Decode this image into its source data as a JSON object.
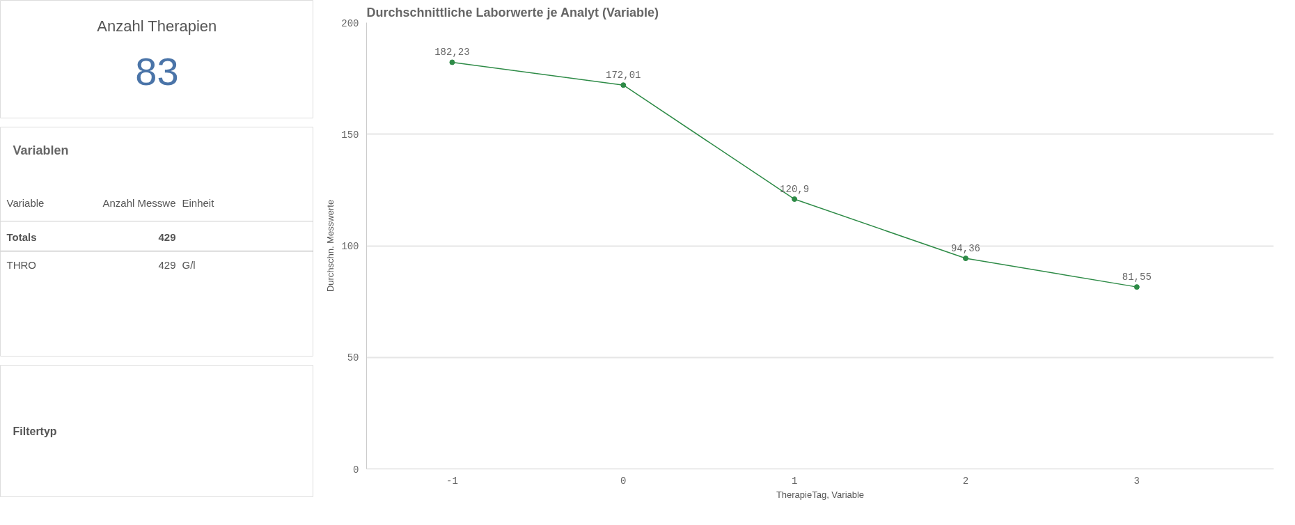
{
  "chart_data": [
    {
      "type": "other",
      "title": "Anzahl Therapien",
      "annotations": [
        "83"
      ]
    },
    {
      "type": "other",
      "title": "Variablen",
      "annotations": [
        "Variable",
        "Anzahl Messwe",
        "Einheit",
        "Totals",
        "429",
        "THRO",
        "429",
        "G/l"
      ]
    },
    {
      "type": "other",
      "title": "Filtertyp"
    },
    {
      "type": "line",
      "title": "Durchschnittliche Laborwerte je Analyt (Variable)",
      "xlabel": "TherapieTag, Variable",
      "ylabel": "Durchschn. Messwerte",
      "categories": [
        "-1",
        "0",
        "1",
        "2",
        "3"
      ],
      "series": [
        {
          "color": "#2e8b47",
          "values": [
            182.23,
            172.01,
            120.9,
            94.36,
            81.55
          ],
          "value_labels": [
            "182,23",
            "172,01",
            "120,9",
            "94,36",
            "81,55"
          ]
        }
      ],
      "ylim": [
        0,
        200
      ],
      "yticks": [
        0,
        50,
        100,
        150,
        200
      ],
      "grid": "y",
      "marker": "circle"
    }
  ]
}
